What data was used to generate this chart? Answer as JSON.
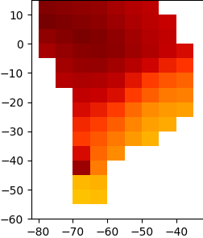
{
  "title": "",
  "figsize": [
    2.53,
    2.95
  ],
  "dpi": 100,
  "colormap_colors": [
    "#ffff00",
    "#ffcc00",
    "#ff9900",
    "#ff6600",
    "#ff3300",
    "#cc0000",
    "#990000",
    "#660000"
  ],
  "colormap_values": [
    0.0,
    0.14,
    0.29,
    0.43,
    0.57,
    0.71,
    0.86,
    1.0
  ],
  "grid_lon_min": -82,
  "grid_lon_max": -32,
  "grid_lat_min": -56,
  "grid_lat_max": 14,
  "grid_resolution": 5,
  "map_lon_min": -82,
  "map_lon_max": -32,
  "map_lat_min": -60,
  "map_lat_max": 15,
  "background_color": "#ffffff",
  "grid_data": [
    {
      "lon": -80,
      "lat": 10,
      "val": 0.92
    },
    {
      "lon": -75,
      "lat": 10,
      "val": 0.9
    },
    {
      "lon": -70,
      "lat": 10,
      "val": 0.88
    },
    {
      "lon": -65,
      "lat": 10,
      "val": 0.87
    },
    {
      "lon": -60,
      "lat": 10,
      "val": 0.82
    },
    {
      "lon": -55,
      "lat": 10,
      "val": 0.78
    },
    {
      "lon": -50,
      "lat": 10,
      "val": 0.75
    },
    {
      "lon": -80,
      "lat": 5,
      "val": 0.95
    },
    {
      "lon": -75,
      "lat": 5,
      "val": 0.93
    },
    {
      "lon": -70,
      "lat": 5,
      "val": 0.91
    },
    {
      "lon": -65,
      "lat": 5,
      "val": 0.89
    },
    {
      "lon": -60,
      "lat": 5,
      "val": 0.85
    },
    {
      "lon": -55,
      "lat": 5,
      "val": 0.8
    },
    {
      "lon": -50,
      "lat": 5,
      "val": 0.76
    },
    {
      "lon": -45,
      "lat": 5,
      "val": 0.72
    },
    {
      "lon": -80,
      "lat": 0,
      "val": 0.88
    },
    {
      "lon": -75,
      "lat": 0,
      "val": 0.91
    },
    {
      "lon": -70,
      "lat": 0,
      "val": 0.94
    },
    {
      "lon": -65,
      "lat": 0,
      "val": 0.92
    },
    {
      "lon": -60,
      "lat": 0,
      "val": 0.88
    },
    {
      "lon": -55,
      "lat": 0,
      "val": 0.83
    },
    {
      "lon": -50,
      "lat": 0,
      "val": 0.78
    },
    {
      "lon": -45,
      "lat": 0,
      "val": 0.74
    },
    {
      "lon": -80,
      "lat": -5,
      "val": 0.82
    },
    {
      "lon": -75,
      "lat": -5,
      "val": 0.87
    },
    {
      "lon": -70,
      "lat": -5,
      "val": 0.9
    },
    {
      "lon": -65,
      "lat": -5,
      "val": 0.91
    },
    {
      "lon": -60,
      "lat": -5,
      "val": 0.89
    },
    {
      "lon": -55,
      "lat": -5,
      "val": 0.84
    },
    {
      "lon": -50,
      "lat": -5,
      "val": 0.79
    },
    {
      "lon": -45,
      "lat": -5,
      "val": 0.73
    },
    {
      "lon": -40,
      "lat": -5,
      "val": 0.68
    },
    {
      "lon": -75,
      "lat": -10,
      "val": 0.83
    },
    {
      "lon": -70,
      "lat": -10,
      "val": 0.86
    },
    {
      "lon": -65,
      "lat": -10,
      "val": 0.87
    },
    {
      "lon": -60,
      "lat": -10,
      "val": 0.83
    },
    {
      "lon": -55,
      "lat": -10,
      "val": 0.77
    },
    {
      "lon": -50,
      "lat": -10,
      "val": 0.7
    },
    {
      "lon": -45,
      "lat": -10,
      "val": 0.62
    },
    {
      "lon": -40,
      "lat": -10,
      "val": 0.57
    },
    {
      "lon": -75,
      "lat": -15,
      "val": 0.78
    },
    {
      "lon": -70,
      "lat": -15,
      "val": 0.8
    },
    {
      "lon": -65,
      "lat": -15,
      "val": 0.79
    },
    {
      "lon": -60,
      "lat": -15,
      "val": 0.75
    },
    {
      "lon": -55,
      "lat": -15,
      "val": 0.65
    },
    {
      "lon": -50,
      "lat": -15,
      "val": 0.55
    },
    {
      "lon": -45,
      "lat": -15,
      "val": 0.48
    },
    {
      "lon": -40,
      "lat": -15,
      "val": 0.44
    },
    {
      "lon": -70,
      "lat": -20,
      "val": 0.74
    },
    {
      "lon": -65,
      "lat": -20,
      "val": 0.72
    },
    {
      "lon": -60,
      "lat": -20,
      "val": 0.67
    },
    {
      "lon": -55,
      "lat": -20,
      "val": 0.55
    },
    {
      "lon": -50,
      "lat": -20,
      "val": 0.45
    },
    {
      "lon": -45,
      "lat": -20,
      "val": 0.38
    },
    {
      "lon": -40,
      "lat": -20,
      "val": 0.36
    },
    {
      "lon": -70,
      "lat": -25,
      "val": 0.68
    },
    {
      "lon": -65,
      "lat": -25,
      "val": 0.63
    },
    {
      "lon": -60,
      "lat": -25,
      "val": 0.55
    },
    {
      "lon": -55,
      "lat": -25,
      "val": 0.42
    },
    {
      "lon": -50,
      "lat": -25,
      "val": 0.33
    },
    {
      "lon": -45,
      "lat": -25,
      "val": 0.29
    },
    {
      "lon": -40,
      "lat": -25,
      "val": 0.27
    },
    {
      "lon": -70,
      "lat": -30,
      "val": 0.6
    },
    {
      "lon": -65,
      "lat": -30,
      "val": 0.54
    },
    {
      "lon": -60,
      "lat": -30,
      "val": 0.45
    },
    {
      "lon": -55,
      "lat": -30,
      "val": 0.35
    },
    {
      "lon": -50,
      "lat": -30,
      "val": 0.27
    },
    {
      "lon": -45,
      "lat": -30,
      "val": 0.24
    },
    {
      "lon": -70,
      "lat": -35,
      "val": 0.55
    },
    {
      "lon": -65,
      "lat": -35,
      "val": 0.47
    },
    {
      "lon": -60,
      "lat": -35,
      "val": 0.38
    },
    {
      "lon": -55,
      "lat": -35,
      "val": 0.29
    },
    {
      "lon": -50,
      "lat": -35,
      "val": 0.22
    },
    {
      "lon": -70,
      "lat": -40,
      "val": 0.68
    },
    {
      "lon": -65,
      "lat": -40,
      "val": 0.43
    },
    {
      "lon": -60,
      "lat": -40,
      "val": 0.33
    },
    {
      "lon": -70,
      "lat": -45,
      "val": 0.85
    },
    {
      "lon": -65,
      "lat": -45,
      "val": 0.37
    },
    {
      "lon": -70,
      "lat": -50,
      "val": 0.2
    },
    {
      "lon": -65,
      "lat": -50,
      "val": 0.22
    },
    {
      "lon": -70,
      "lat": -55,
      "val": 0.17
    },
    {
      "lon": -65,
      "lat": -55,
      "val": 0.19
    }
  ]
}
